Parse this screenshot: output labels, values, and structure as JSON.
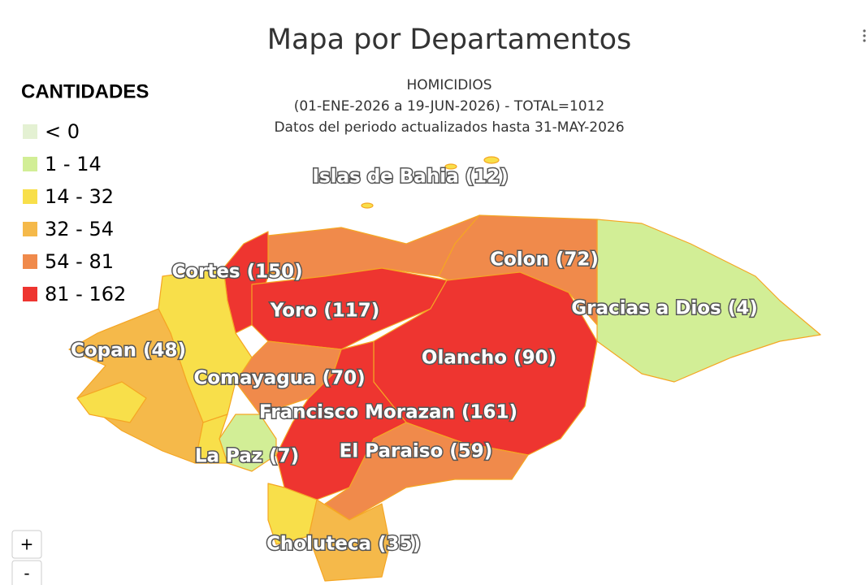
{
  "header": {
    "title": "Mapa por Departamentos",
    "subtitle": [
      "HOMICIDIOS",
      "(01-ENE-2026 a 19-JUN-2026) - TOTAL=1012",
      "Datos del periodo actualizados hasta 31-MAY-2026"
    ]
  },
  "legend": {
    "title": "CANTIDADES",
    "items": [
      {
        "label": "< 0",
        "color": "#e4f1d3"
      },
      {
        "label": "1 - 14",
        "color": "#d2ee96"
      },
      {
        "label": "14 - 32",
        "color": "#f8df4a"
      },
      {
        "label": "32 - 54",
        "color": "#f5b94a"
      },
      {
        "label": "54 - 81",
        "color": "#f08a4b"
      },
      {
        "label": "81 - 162",
        "color": "#ee3530"
      }
    ]
  },
  "regions": [
    "Islas de Bahia (12)",
    "Cortes (150)",
    "Colon (72)",
    "Yoro (117)",
    "Gracias a Dios (4)",
    "Copan (48)",
    "Olancho (90)",
    "Comayagua (70)",
    "Francisco Morazan (161)",
    "La Paz (7)",
    "El Paraiso (59)",
    "Choluteca (35)"
  ],
  "zoom": {
    "in": "+",
    "out": "-"
  }
}
